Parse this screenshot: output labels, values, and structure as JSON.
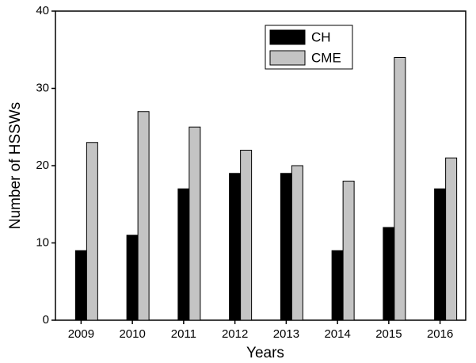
{
  "chart_data": {
    "type": "bar",
    "x_label": "Years",
    "y_label": "Number of HSSWs",
    "categories": [
      "2009",
      "2010",
      "2011",
      "2012",
      "2013",
      "2014",
      "2015",
      "2016"
    ],
    "series": [
      {
        "name": "CH",
        "color": "#000000",
        "values": [
          9,
          11,
          17,
          19,
          19,
          9,
          12,
          17
        ]
      },
      {
        "name": "CME",
        "color": "#c4c4c4",
        "values": [
          23,
          27,
          25,
          22,
          20,
          18,
          34,
          21
        ]
      }
    ],
    "ylim": [
      0,
      40
    ],
    "yticks": [
      0,
      10,
      20,
      30,
      40
    ],
    "grid": false
  }
}
